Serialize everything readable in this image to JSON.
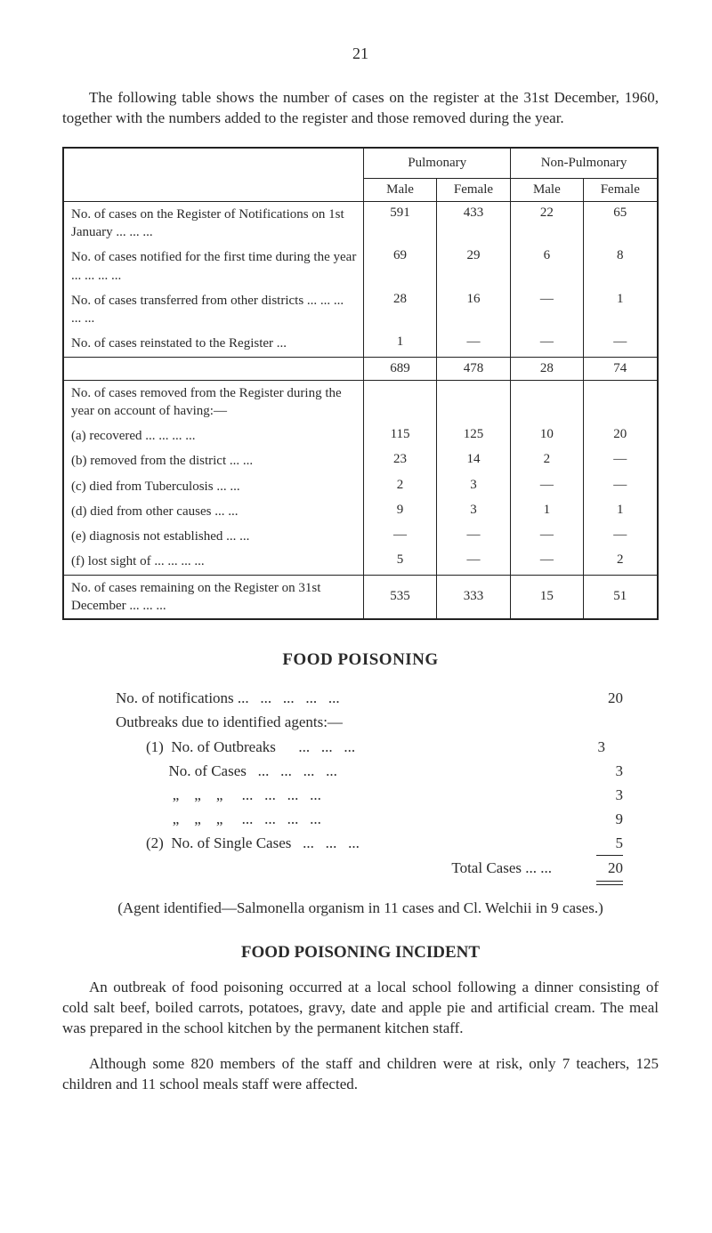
{
  "page_number": "21",
  "intro": "The following table shows the number of cases on the register at the 31st December, 1960, together with the numbers added to the register and those removed during the year.",
  "table": {
    "col_groups": [
      "Pulmonary",
      "Non-Pulmonary"
    ],
    "sub_cols": [
      "Male",
      "Female",
      "Male",
      "Female"
    ],
    "block1": {
      "rows": [
        {
          "label": "No. of cases on the Register of Notifications on 1st January   ...   ...   ...",
          "cells": [
            "591",
            "433",
            "22",
            "65"
          ]
        },
        {
          "label": "No. of cases notified for the first time during the year ...   ...   ...   ...",
          "cells": [
            "69",
            "29",
            "6",
            "8"
          ]
        },
        {
          "label": "No. of cases transferred from other districts ...   ...   ...   ...   ...",
          "cells": [
            "28",
            "16",
            "—",
            "1"
          ]
        },
        {
          "label": "No. of cases reinstated to the Register ...",
          "cells": [
            "1",
            "—",
            "—",
            "—"
          ]
        }
      ],
      "totals": [
        "689",
        "478",
        "28",
        "74"
      ]
    },
    "block2": {
      "header": "No. of cases removed from the Register during the year on account of having:—",
      "rows": [
        {
          "label": "(a)  recovered   ...   ...   ...   ...",
          "cells": [
            "115",
            "125",
            "10",
            "20"
          ]
        },
        {
          "label": "(b)  removed from the district   ...   ...",
          "cells": [
            "23",
            "14",
            "2",
            "—"
          ]
        },
        {
          "label": "(c)  died from Tuberculosis   ...   ...",
          "cells": [
            "2",
            "3",
            "—",
            "—"
          ]
        },
        {
          "label": "(d)  died from other causes   ...   ...",
          "cells": [
            "9",
            "3",
            "1",
            "1"
          ]
        },
        {
          "label": "(e)  diagnosis not established   ...   ...",
          "cells": [
            "—",
            "—",
            "—",
            "—"
          ]
        },
        {
          "label": "(f)  lost sight of   ...   ...   ...   ...",
          "cells": [
            "5",
            "—",
            "—",
            "2"
          ]
        }
      ]
    },
    "block3": {
      "label": "No. of cases remaining on the Register on 31st December   ...   ...   ...",
      "cells": [
        "535",
        "333",
        "15",
        "51"
      ]
    }
  },
  "food_poisoning": {
    "heading": "FOOD POISONING",
    "lines": [
      {
        "label": "No. of notifications ...   ...   ...   ...   ...",
        "val": "20"
      },
      {
        "label": "Outbreaks due to identified agents:—",
        "val": ""
      },
      {
        "label": "        (1)  No. of Outbreaks      ...   ...   ...",
        "val": "3",
        "right_indent": true
      },
      {
        "label": "              No. of Cases   ...   ...   ...   ...",
        "val": "3"
      },
      {
        "label": "               „    „    „     ...   ...   ...   ...",
        "val": "3"
      },
      {
        "label": "               „    „    „     ...   ...   ...   ...",
        "val": "9"
      },
      {
        "label": "        (2)  No. of Single Cases   ...   ...   ...",
        "val": "5"
      }
    ],
    "total_label": "Total Cases   ...   ...",
    "total_val": "20",
    "agent_note": "(Agent identified—Salmonella organism in 11 cases and Cl. Welchii in 9 cases.)"
  },
  "incident": {
    "heading": "FOOD POISONING INCIDENT",
    "p1": "An outbreak of food poisoning occurred at a local school following a dinner consisting of cold salt beef, boiled carrots, potatoes, gravy, date and apple pie and artificial cream. The meal was prepared in the school kitchen by the permanent kitchen staff.",
    "p2": "Although some 820 members of the staff and children were at risk, only 7 teachers, 125 children and 11 school meals staff were affected."
  }
}
